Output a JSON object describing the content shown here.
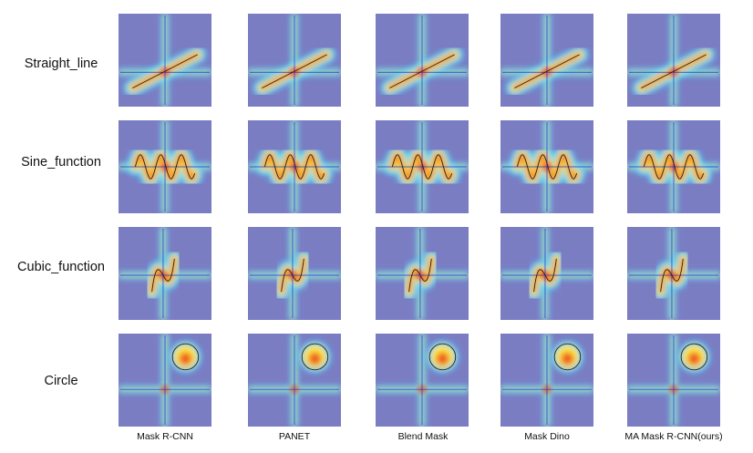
{
  "figure": {
    "rows": [
      {
        "id": "line",
        "label": "Straight_line"
      },
      {
        "id": "sine",
        "label": "Sine_function"
      },
      {
        "id": "cubic",
        "label": "Cubic_function"
      },
      {
        "id": "circle",
        "label": "Circle"
      }
    ],
    "columns": [
      {
        "id": "maskrcnn",
        "label": "Mask R-CNN"
      },
      {
        "id": "panet",
        "label": "PANET"
      },
      {
        "id": "blendmask",
        "label": "Blend Mask"
      },
      {
        "id": "maskdino",
        "label": "Mask Dino"
      },
      {
        "id": "mamaskrcnn",
        "label": "MA Mask R-CNN(ours)"
      }
    ],
    "colors": {
      "background": "#7b7dc3",
      "cold": "#35d6ff",
      "warm": "#ffe83a",
      "hot": "#e83320",
      "curve": "#222222",
      "axis": "#2233cc"
    }
  }
}
